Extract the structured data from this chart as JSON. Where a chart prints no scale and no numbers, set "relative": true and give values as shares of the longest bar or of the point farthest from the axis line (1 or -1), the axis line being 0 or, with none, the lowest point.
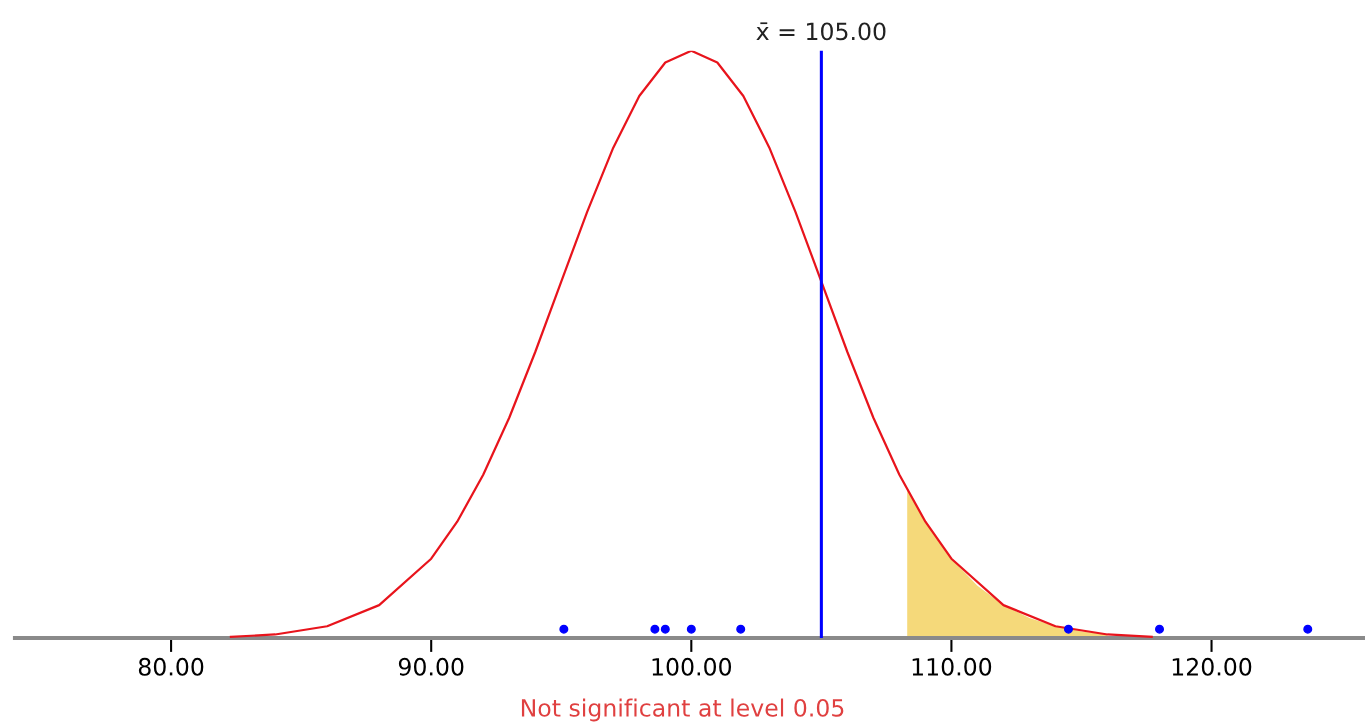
{
  "chart_data": {
    "type": "line",
    "relative": true,
    "xlim": [
      74,
      125.9
    ],
    "xticks": [
      {
        "value": 80,
        "label": "80.00"
      },
      {
        "value": 90,
        "label": "90.00"
      },
      {
        "value": 100,
        "label": "100.00"
      },
      {
        "value": 110,
        "label": "110.00"
      },
      {
        "value": 120,
        "label": "120.00"
      }
    ],
    "tick_labels": "x",
    "grid": false,
    "series": [
      {
        "type": "area",
        "color": "#f5d97a",
        "x": [
          108.3,
          109,
          110,
          111,
          112,
          113,
          114,
          115,
          116
        ],
        "values": [
          0.252,
          0.198,
          0.135,
          0.089,
          0.056,
          0.034,
          0.02,
          0.011,
          0.006
        ]
      },
      {
        "type": "line",
        "color": "#e8141c",
        "x": [
          82.3,
          84,
          86,
          88,
          90,
          91,
          92,
          93,
          94,
          95,
          96,
          97,
          98,
          99,
          100,
          101,
          102,
          103,
          104,
          105,
          106,
          107,
          108,
          109,
          110,
          112,
          114,
          116,
          117.7
        ],
        "values": [
          0.002,
          0.006,
          0.02,
          0.056,
          0.135,
          0.198,
          0.278,
          0.375,
          0.487,
          0.607,
          0.726,
          0.835,
          0.923,
          0.98,
          1,
          0.98,
          0.923,
          0.835,
          0.726,
          0.607,
          0.487,
          0.375,
          0.278,
          0.198,
          0.135,
          0.056,
          0.02,
          0.006,
          0.002
        ]
      },
      {
        "type": "scatter",
        "color": "#0000ff",
        "marker": "circle",
        "x": [
          95.1,
          98.6,
          99.0,
          100.0,
          101.9,
          114.5,
          118.0,
          123.7
        ],
        "values": [
          0.015,
          0.015,
          0.015,
          0.015,
          0.015,
          0.015,
          0.015,
          0.015
        ]
      }
    ],
    "ref_lines": [
      {
        "axis": "x",
        "value": 105,
        "label": "x̄ = 105.00",
        "color": "#0000ff"
      }
    ],
    "annotations": [
      "Not significant at level 0.05"
    ]
  }
}
